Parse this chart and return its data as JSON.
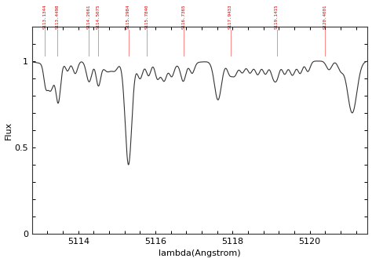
{
  "xmin": 5112.8,
  "xmax": 5121.5,
  "ymin": 0.0,
  "ymax": 1.2,
  "xlabel": "lambda(Angstrom)",
  "ylabel": "Flux",
  "xticks": [
    5114,
    5116,
    5118,
    5120
  ],
  "yticks": [
    0,
    0.5,
    1
  ],
  "line_color": "#333333",
  "vline_color": "#ff8888",
  "label_color": "#cc0000",
  "bg_color": "#ffffff",
  "line_positions": [
    5113.1344,
    5113.4498,
    5114.2661,
    5114.5075,
    5115.2984,
    5115.784,
    5116.7365,
    5117.9433,
    5119.1415,
    5120.4001
  ],
  "line_labels": [
    "S113.1344",
    "S113.4498",
    "S114.2661",
    "S114.5075",
    "S115.2984",
    "S115.7840",
    "S116.7365",
    "S117.9433",
    "S119.1415",
    "S120.4001"
  ],
  "figwidth": 4.74,
  "figheight": 3.34,
  "dpi": 100
}
